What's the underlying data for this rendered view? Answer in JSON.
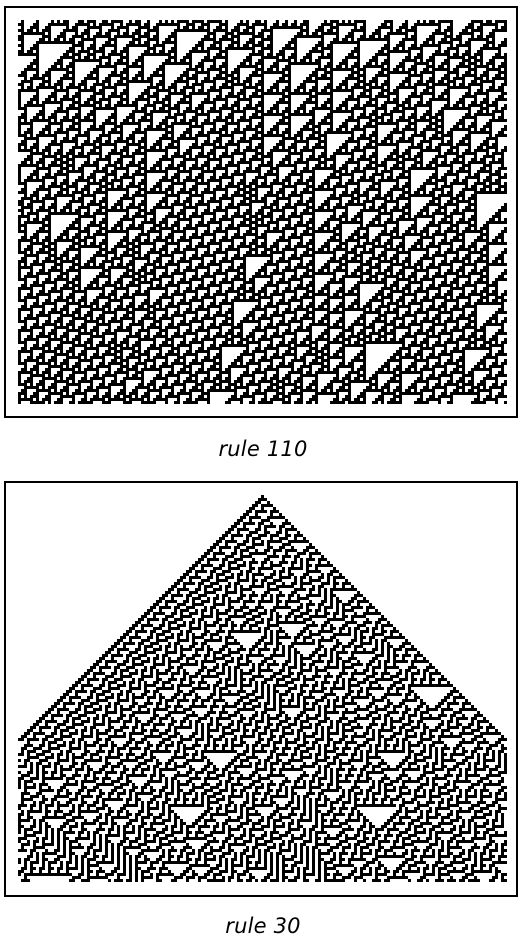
{
  "figures": [
    {
      "caption": "rule 110",
      "rule": 110,
      "initial_condition": "random"
    },
    {
      "caption": "rule 30",
      "rule": 30,
      "initial_condition": "single black cell"
    }
  ],
  "colors": {
    "cell_on": "#000000",
    "cell_off": "#ffffff",
    "frame": "#000000"
  }
}
